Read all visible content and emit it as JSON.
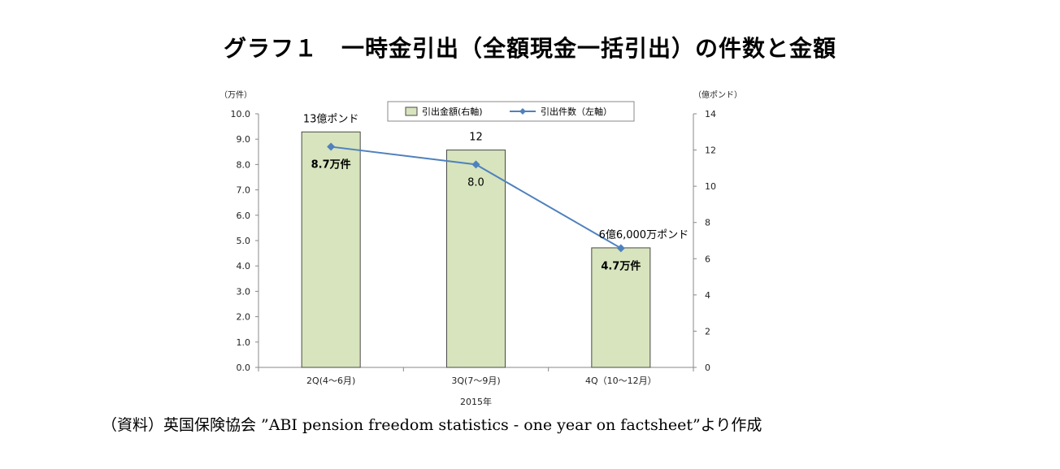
{
  "title": "グラフ１　一時金引出（全額現金一括引出）の件数と金額",
  "source_note": "（資料）英国保険協会 ”ABI pension freedom statistics - one year on factsheet”より作成",
  "chart_data": {
    "type": "bar+line",
    "xlabel": "2015年",
    "categories": [
      "2Q(4～6月)",
      "3Q(7～9月)",
      "4Q（10～12月）"
    ],
    "left_axis": {
      "unit_label": "（万件）",
      "range": [
        0,
        10
      ],
      "ticks": [
        "0.0",
        "1.0",
        "2.0",
        "3.0",
        "4.0",
        "5.0",
        "6.0",
        "7.0",
        "8.0",
        "9.0",
        "10.0"
      ]
    },
    "right_axis": {
      "unit_label": "（億ポンド）",
      "range": [
        0,
        14
      ],
      "ticks": [
        "0",
        "2",
        "4",
        "6",
        "8",
        "10",
        "12",
        "14"
      ]
    },
    "legend": {
      "placement": "top-center",
      "bar_label": "引出金額(右軸)",
      "line_label": "引出件数（左軸）"
    },
    "series": [
      {
        "name": "引出金額(右軸)",
        "type": "bar",
        "axis": "right",
        "values": [
          13,
          12,
          6.6
        ],
        "labels": [
          "13億ポンド",
          "12",
          "6億6,000万ポンド"
        ],
        "color": "#d7e4bd",
        "stroke": "#4a4a4a"
      },
      {
        "name": "引出件数（左軸）",
        "type": "line",
        "axis": "left",
        "values": [
          8.7,
          8.0,
          4.7
        ],
        "labels": [
          "8.7万件",
          "8.0",
          "4.7万件"
        ],
        "color": "#4f81bd"
      }
    ]
  }
}
